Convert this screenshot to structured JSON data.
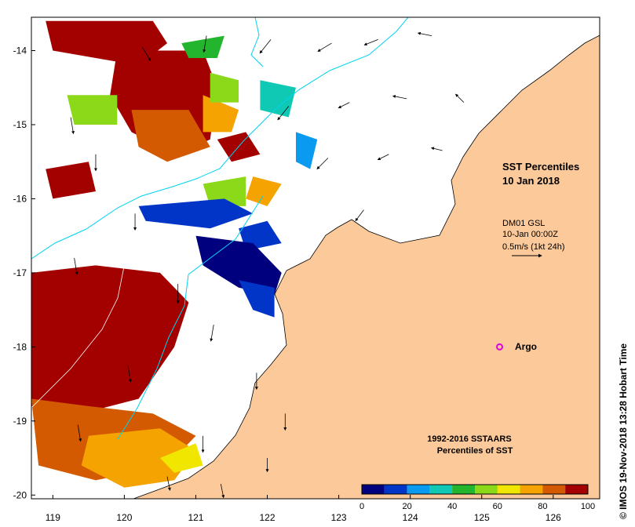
{
  "title": {
    "line1": "SST Percentiles",
    "line2": "10 Jan 2018"
  },
  "current_info": {
    "line1": "DM01 GSL",
    "line2": "10-Jan 00:00Z",
    "line3": "0.5m/s (1kt 24h)"
  },
  "argo_label": "Argo",
  "credit": "© IMOS 19-Nov-2018 13:28 Hobart Time",
  "legend": {
    "title1": "1992-2016 SSTAARS",
    "title2": "Percentiles of SST",
    "tick_labels": [
      "0",
      "20",
      "40",
      "60",
      "80",
      "100"
    ],
    "colors": [
      "#00007f",
      "#0035c8",
      "#0a9bf0",
      "#10c9b4",
      "#23b52d",
      "#8cd91a",
      "#f0e600",
      "#f5a300",
      "#d35a00",
      "#a30000"
    ]
  },
  "colors": {
    "land": "#fbc99a",
    "ocean": "#ffffff",
    "bathymetry": "#00d2f0",
    "argo": "#e000e0"
  },
  "chart_data": {
    "type": "heatmap",
    "x_ticks": [
      "119",
      "120",
      "121",
      "122",
      "123",
      "124",
      "125",
      "126"
    ],
    "y_ticks": [
      "-14",
      "-15",
      "-16",
      "-17",
      "-18",
      "-19",
      "-20"
    ],
    "xlim": [
      118.7,
      126.65
    ],
    "ylim": [
      -20.05,
      -13.55
    ],
    "argo_float": {
      "lon": 125.25,
      "lat": -18.0
    },
    "sst_patches": [
      {
        "percentile": 95,
        "points": [
          [
            118.9,
            -13.6
          ],
          [
            120.4,
            -13.6
          ],
          [
            120.6,
            -13.9
          ],
          [
            120.2,
            -14.2
          ],
          [
            119.6,
            -14.1
          ],
          [
            119.0,
            -14.0
          ]
        ]
      },
      {
        "percentile": 95,
        "points": [
          [
            119.9,
            -14.0
          ],
          [
            121.1,
            -14.0
          ],
          [
            121.3,
            -14.5
          ],
          [
            121.2,
            -15.2
          ],
          [
            120.7,
            -15.4
          ],
          [
            120.1,
            -15.1
          ],
          [
            119.8,
            -14.6
          ]
        ]
      },
      {
        "percentile": 95,
        "points": [
          [
            118.7,
            -17.0
          ],
          [
            119.6,
            -16.9
          ],
          [
            120.5,
            -17.0
          ],
          [
            120.9,
            -17.4
          ],
          [
            120.7,
            -18.0
          ],
          [
            120.2,
            -18.7
          ],
          [
            119.4,
            -18.9
          ],
          [
            118.7,
            -18.8
          ]
        ]
      },
      {
        "percentile": 95,
        "points": [
          [
            118.9,
            -15.6
          ],
          [
            119.5,
            -15.5
          ],
          [
            119.6,
            -15.9
          ],
          [
            119.0,
            -16.0
          ]
        ]
      },
      {
        "percentile": 95,
        "points": [
          [
            121.3,
            -15.2
          ],
          [
            121.7,
            -15.1
          ],
          [
            121.9,
            -15.4
          ],
          [
            121.5,
            -15.5
          ]
        ]
      },
      {
        "percentile": 85,
        "points": [
          [
            120.1,
            -14.8
          ],
          [
            120.9,
            -14.8
          ],
          [
            121.2,
            -15.3
          ],
          [
            120.6,
            -15.5
          ],
          [
            120.2,
            -15.3
          ]
        ]
      },
      {
        "percentile": 85,
        "points": [
          [
            118.7,
            -18.7
          ],
          [
            119.5,
            -18.8
          ],
          [
            120.4,
            -18.9
          ],
          [
            121.0,
            -19.2
          ],
          [
            120.6,
            -19.6
          ],
          [
            119.6,
            -19.8
          ],
          [
            118.8,
            -19.6
          ]
        ]
      },
      {
        "percentile": 75,
        "points": [
          [
            119.5,
            -19.2
          ],
          [
            120.5,
            -19.1
          ],
          [
            121.0,
            -19.4
          ],
          [
            120.7,
            -19.8
          ],
          [
            120.0,
            -19.9
          ],
          [
            119.4,
            -19.6
          ]
        ]
      },
      {
        "percentile": 75,
        "points": [
          [
            121.1,
            -14.6
          ],
          [
            121.6,
            -14.8
          ],
          [
            121.5,
            -15.1
          ],
          [
            121.1,
            -15.1
          ]
        ]
      },
      {
        "percentile": 75,
        "points": [
          [
            121.8,
            -15.7
          ],
          [
            122.2,
            -15.8
          ],
          [
            122.0,
            -16.1
          ],
          [
            121.7,
            -16.0
          ]
        ]
      },
      {
        "percentile": 65,
        "points": [
          [
            120.5,
            -19.5
          ],
          [
            121.0,
            -19.3
          ],
          [
            121.1,
            -19.6
          ],
          [
            120.7,
            -19.7
          ]
        ]
      },
      {
        "percentile": 55,
        "points": [
          [
            119.2,
            -14.6
          ],
          [
            119.9,
            -14.6
          ],
          [
            119.9,
            -15.0
          ],
          [
            119.3,
            -15.0
          ]
        ]
      },
      {
        "percentile": 55,
        "points": [
          [
            121.2,
            -14.3
          ],
          [
            121.6,
            -14.4
          ],
          [
            121.6,
            -14.7
          ],
          [
            121.2,
            -14.7
          ]
        ]
      },
      {
        "percentile": 55,
        "points": [
          [
            121.1,
            -15.8
          ],
          [
            121.7,
            -15.7
          ],
          [
            121.7,
            -16.1
          ],
          [
            121.2,
            -16.1
          ]
        ]
      },
      {
        "percentile": 45,
        "points": [
          [
            120.8,
            -13.9
          ],
          [
            121.4,
            -13.8
          ],
          [
            121.3,
            -14.1
          ],
          [
            120.9,
            -14.1
          ]
        ]
      },
      {
        "percentile": 35,
        "points": [
          [
            121.9,
            -14.4
          ],
          [
            122.4,
            -14.5
          ],
          [
            122.3,
            -14.9
          ],
          [
            121.9,
            -14.8
          ]
        ]
      },
      {
        "percentile": 25,
        "points": [
          [
            122.4,
            -15.1
          ],
          [
            122.7,
            -15.2
          ],
          [
            122.6,
            -15.6
          ],
          [
            122.4,
            -15.5
          ]
        ]
      },
      {
        "percentile": 15,
        "points": [
          [
            120.2,
            -16.1
          ],
          [
            121.4,
            -16.0
          ],
          [
            121.8,
            -16.2
          ],
          [
            121.2,
            -16.4
          ],
          [
            120.3,
            -16.3
          ]
        ]
      },
      {
        "percentile": 15,
        "points": [
          [
            121.6,
            -16.4
          ],
          [
            122.0,
            -16.3
          ],
          [
            122.2,
            -16.6
          ],
          [
            121.7,
            -16.7
          ]
        ]
      },
      {
        "percentile": 5,
        "points": [
          [
            121.0,
            -16.5
          ],
          [
            121.8,
            -16.6
          ],
          [
            122.2,
            -17.0
          ],
          [
            122.1,
            -17.3
          ],
          [
            121.6,
            -17.2
          ],
          [
            121.1,
            -16.9
          ]
        ]
      },
      {
        "percentile": 15,
        "points": [
          [
            121.6,
            -17.1
          ],
          [
            122.1,
            -17.2
          ],
          [
            122.1,
            -17.6
          ],
          [
            121.8,
            -17.5
          ]
        ]
      }
    ],
    "current_vectors": [
      {
        "lon": 120.25,
        "lat": -13.95,
        "u": 0.15,
        "v": -0.25
      },
      {
        "lon": 121.15,
        "lat": -13.8,
        "u": -0.05,
        "v": -0.3
      },
      {
        "lon": 122.05,
        "lat": -13.85,
        "u": -0.2,
        "v": -0.25
      },
      {
        "lon": 122.9,
        "lat": -13.9,
        "u": -0.25,
        "v": -0.15
      },
      {
        "lon": 123.55,
        "lat": -13.85,
        "u": -0.25,
        "v": -0.1
      },
      {
        "lon": 124.3,
        "lat": -13.8,
        "u": -0.25,
        "v": 0.05
      },
      {
        "lon": 119.25,
        "lat": -14.9,
        "u": 0.05,
        "v": -0.3
      },
      {
        "lon": 122.3,
        "lat": -14.75,
        "u": -0.2,
        "v": -0.25
      },
      {
        "lon": 123.15,
        "lat": -14.7,
        "u": -0.2,
        "v": -0.1
      },
      {
        "lon": 123.95,
        "lat": -14.65,
        "u": -0.25,
        "v": 0.05
      },
      {
        "lon": 124.75,
        "lat": -14.7,
        "u": -0.15,
        "v": 0.15
      },
      {
        "lon": 119.6,
        "lat": -15.4,
        "u": 0.0,
        "v": -0.3
      },
      {
        "lon": 122.85,
        "lat": -15.45,
        "u": -0.2,
        "v": -0.2
      },
      {
        "lon": 123.7,
        "lat": -15.4,
        "u": -0.2,
        "v": -0.1
      },
      {
        "lon": 124.45,
        "lat": -15.35,
        "u": -0.2,
        "v": 0.05
      },
      {
        "lon": 120.15,
        "lat": -16.2,
        "u": 0.0,
        "v": -0.3
      },
      {
        "lon": 123.35,
        "lat": -16.15,
        "u": -0.15,
        "v": -0.2
      },
      {
        "lon": 119.3,
        "lat": -16.8,
        "u": 0.05,
        "v": -0.3
      },
      {
        "lon": 120.75,
        "lat": -17.15,
        "u": 0.0,
        "v": -0.35
      },
      {
        "lon": 121.25,
        "lat": -17.7,
        "u": -0.05,
        "v": -0.3
      },
      {
        "lon": 120.05,
        "lat": -18.25,
        "u": 0.05,
        "v": -0.3
      },
      {
        "lon": 121.85,
        "lat": -18.35,
        "u": 0.0,
        "v": -0.3
      },
      {
        "lon": 122.25,
        "lat": -18.9,
        "u": 0.0,
        "v": -0.3
      },
      {
        "lon": 119.35,
        "lat": -19.05,
        "u": 0.05,
        "v": -0.3
      },
      {
        "lon": 121.1,
        "lat": -19.2,
        "u": 0.0,
        "v": -0.3
      },
      {
        "lon": 122.0,
        "lat": -19.5,
        "u": 0.0,
        "v": -0.25
      },
      {
        "lon": 120.6,
        "lat": -19.75,
        "u": 0.05,
        "v": -0.25
      },
      {
        "lon": 121.35,
        "lat": -19.85,
        "u": 0.05,
        "v": -0.25
      }
    ]
  }
}
